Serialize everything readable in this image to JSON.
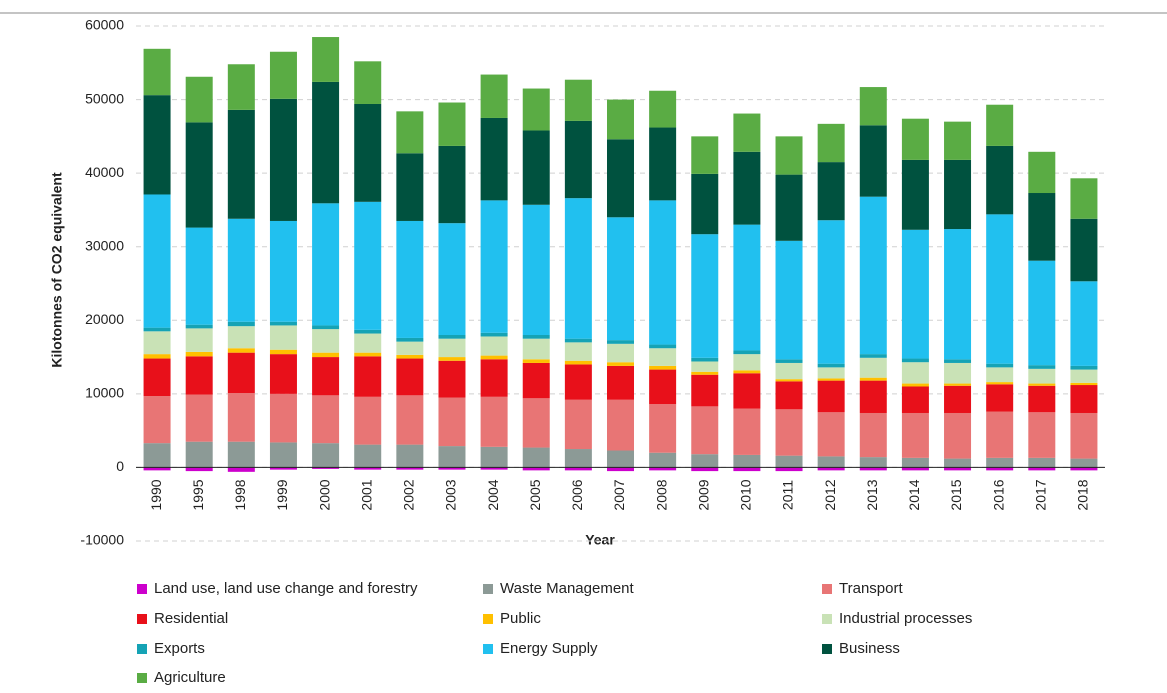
{
  "chart_data": {
    "type": "stacked_bar",
    "xlabel": "Year",
    "ylabel": "Kilotonnes of CO2 equivalent",
    "categories": [
      "1990",
      "1995",
      "1998",
      "1999",
      "2000",
      "2001",
      "2002",
      "2003",
      "2004",
      "2005",
      "2006",
      "2007",
      "2008",
      "2009",
      "2010",
      "2011",
      "2012",
      "2013",
      "2014",
      "2015",
      "2016",
      "2017",
      "2018"
    ],
    "ylim": [
      -10000,
      60000
    ],
    "yticks": [
      -10000,
      0,
      10000,
      20000,
      30000,
      40000,
      50000,
      60000
    ],
    "grid": true,
    "series": [
      {
        "name": "Land use, land use change and forestry",
        "color": "#cc00cc",
        "values": [
          -400,
          -500,
          -600,
          -300,
          -200,
          -300,
          -300,
          -300,
          -300,
          -400,
          -400,
          -500,
          -400,
          -500,
          -500,
          -500,
          -400,
          -400,
          -400,
          -400,
          -400,
          -400,
          -400
        ]
      },
      {
        "name": "Waste Management",
        "color": "#8c9a96",
        "values": [
          3300,
          3500,
          3500,
          3400,
          3300,
          3100,
          3100,
          2900,
          2800,
          2700,
          2500,
          2300,
          2000,
          1800,
          1700,
          1600,
          1500,
          1400,
          1300,
          1200,
          1300,
          1300,
          1200
        ]
      },
      {
        "name": "Transport",
        "color": "#e87575",
        "values": [
          6400,
          6400,
          6600,
          6600,
          6500,
          6500,
          6700,
          6600,
          6800,
          6700,
          6700,
          6900,
          6600,
          6500,
          6300,
          6300,
          6000,
          6000,
          6100,
          6200,
          6300,
          6200,
          6200
        ]
      },
      {
        "name": "Residential",
        "color": "#e8101a",
        "values": [
          5100,
          5200,
          5500,
          5400,
          5200,
          5500,
          5000,
          5000,
          5100,
          4800,
          4800,
          4600,
          4700,
          4300,
          4800,
          3800,
          4300,
          4400,
          3600,
          3700,
          3700,
          3600,
          3800
        ]
      },
      {
        "name": "Public",
        "color": "#ffc000",
        "values": [
          600,
          600,
          600,
          600,
          600,
          500,
          500,
          500,
          500,
          500,
          500,
          500,
          500,
          400,
          400,
          300,
          300,
          400,
          400,
          300,
          300,
          300,
          300
        ]
      },
      {
        "name": "Industrial processes",
        "color": "#c9e2b6",
        "values": [
          3100,
          3200,
          3000,
          3300,
          3200,
          2600,
          1800,
          2500,
          2600,
          2800,
          2500,
          2500,
          2400,
          1400,
          2200,
          2200,
          1500,
          2700,
          2900,
          2800,
          2000,
          2000,
          1800
        ]
      },
      {
        "name": "Exports",
        "color": "#15a3b5",
        "values": [
          500,
          500,
          600,
          500,
          500,
          500,
          500,
          500,
          500,
          500,
          500,
          500,
          500,
          500,
          500,
          500,
          500,
          500,
          500,
          500,
          500,
          500,
          500
        ]
      },
      {
        "name": "Energy Supply",
        "color": "#21c0ef",
        "values": [
          18100,
          13200,
          14000,
          13700,
          16600,
          17400,
          15900,
          15200,
          18000,
          17700,
          19100,
          16700,
          19600,
          16800,
          17100,
          16100,
          19500,
          21400,
          17500,
          17700,
          20300,
          14200,
          11500
        ]
      },
      {
        "name": "Business",
        "color": "#00523f",
        "values": [
          13500,
          14300,
          14800,
          16600,
          16500,
          13300,
          9200,
          10500,
          11200,
          10100,
          10500,
          10600,
          9900,
          8200,
          9900,
          9000,
          7900,
          9700,
          9500,
          9400,
          9300,
          9200,
          8500
        ]
      },
      {
        "name": "Agriculture",
        "color": "#5aac44",
        "values": [
          6300,
          6200,
          6200,
          6400,
          6100,
          5800,
          5700,
          5900,
          5900,
          5700,
          5600,
          5400,
          5000,
          5100,
          5200,
          5200,
          5200,
          5200,
          5600,
          5200,
          5600,
          5600,
          5500
        ]
      }
    ]
  }
}
